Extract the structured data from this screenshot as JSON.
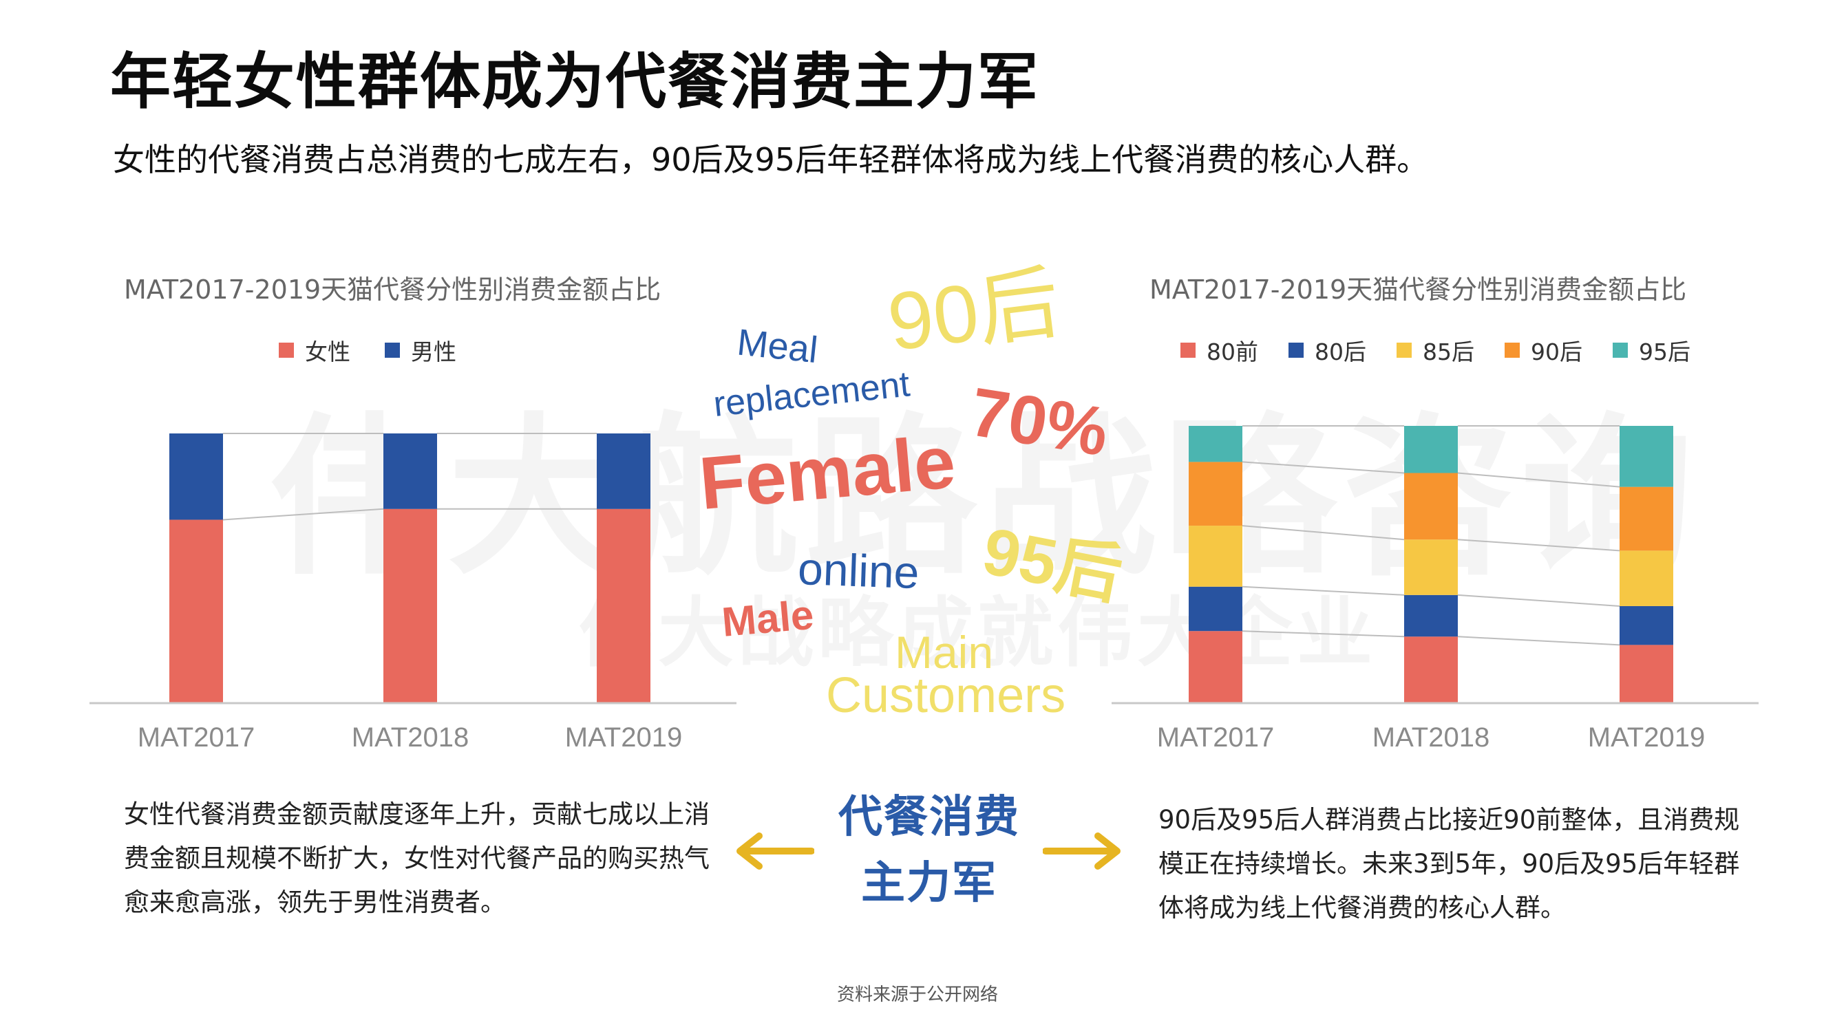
{
  "title": "年轻女性群体成为代餐消费主力军",
  "subtitle": "女性的代餐消费占总消费的七成左右，90后及95后年轻群体将成为线上代餐消费的核心人群。",
  "watermark": {
    "main": "伟大航路战略咨询",
    "sub": "伟大战略成就伟大企业"
  },
  "word_cloud": [
    {
      "text": "90后",
      "color": "#f1df6a"
    },
    {
      "text": "Meal",
      "color": "#2a5ba8"
    },
    {
      "text": "replacement",
      "color": "#2a5ba8"
    },
    {
      "text": "70%",
      "color": "#e8685a"
    },
    {
      "text": "Female",
      "color": "#e8685a"
    },
    {
      "text": "95后",
      "color": "#f1df6a"
    },
    {
      "text": "online",
      "color": "#2a5ba8"
    },
    {
      "text": "Male",
      "color": "#e8685a"
    },
    {
      "text": "Main",
      "color": "#f1df6a"
    },
    {
      "text": "Customers",
      "color": "#f1df6a"
    }
  ],
  "chart_data": [
    {
      "type": "bar",
      "stacked": "percent",
      "title": "MAT2017-2019天猫代餐分性别消费金额占比",
      "categories": [
        "MAT2017",
        "MAT2018",
        "MAT2019"
      ],
      "series": [
        {
          "name": "女性",
          "color": "#e8695d",
          "values": [
            68,
            72,
            72
          ]
        },
        {
          "name": "男性",
          "color": "#2853a0",
          "values": [
            32,
            28,
            28
          ]
        }
      ],
      "ylim": [
        0,
        100
      ],
      "legend": "top",
      "grid": false,
      "connector_lines": true
    },
    {
      "type": "bar",
      "stacked": "percent",
      "title": "MAT2017-2019天猫代餐分性别消费金额占比",
      "categories": [
        "MAT2017",
        "MAT2018",
        "MAT2019"
      ],
      "series": [
        {
          "name": "80前",
          "color": "#e8695d",
          "values": [
            26,
            24,
            21
          ]
        },
        {
          "name": "80后",
          "color": "#2853a0",
          "values": [
            16,
            15,
            14
          ]
        },
        {
          "name": "85后",
          "color": "#f6c744",
          "values": [
            22,
            20,
            20
          ]
        },
        {
          "name": "90后",
          "color": "#f7942e",
          "values": [
            23,
            24,
            23
          ]
        },
        {
          "name": "95后",
          "color": "#4bb5b0",
          "values": [
            13,
            17,
            22
          ]
        }
      ],
      "ylim": [
        0,
        100
      ],
      "legend": "top",
      "grid": false,
      "connector_lines": true
    }
  ],
  "left_description": "女性代餐消费金额贡献度逐年上升，贡献七成以上消费金额且规模不断扩大，女性对代餐产品的购买热气愈来愈高涨，领先于男性消费者。",
  "right_description": "90后及95后人群消费占比接近90前整体，且消费规模正在持续增长。未来3到5年，90后及95后年轻群体将成为线上代餐消费的核心人群。",
  "center_title": [
    "代餐消费",
    "主力军"
  ],
  "source_note": "资料来源于公开网络",
  "arrow_color": "#e6b422"
}
